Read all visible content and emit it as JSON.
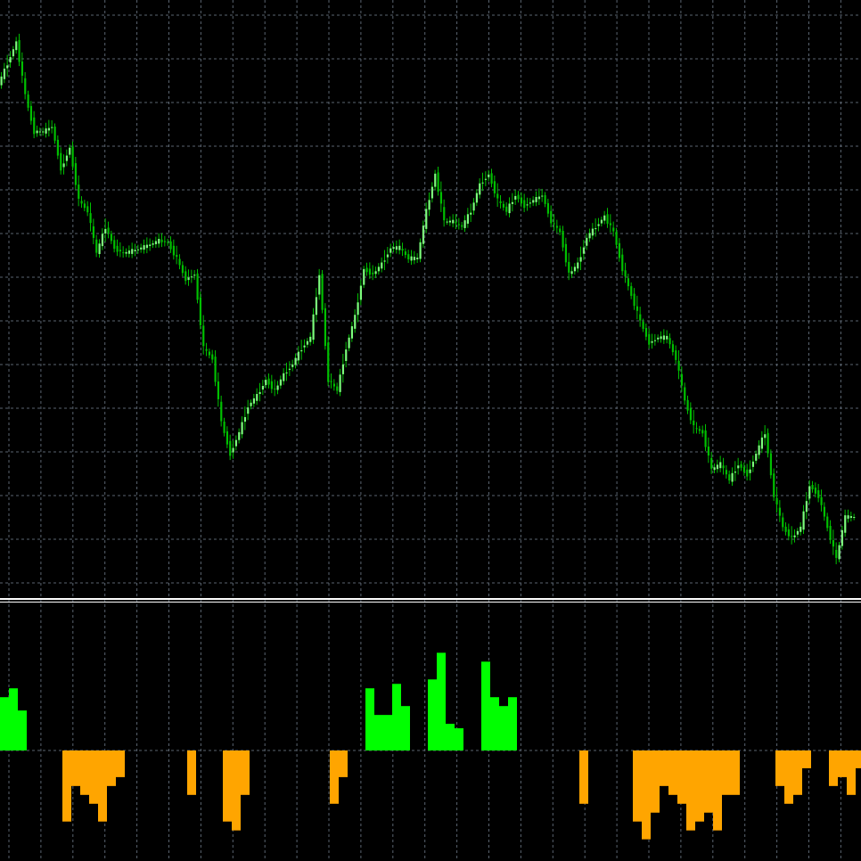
{
  "chart_data": [
    {
      "type": "candlestick",
      "pane": "price",
      "grid": true,
      "colors": {
        "background": "#000000",
        "grid": "#5a6470",
        "bull": "#7CFC7C",
        "bear": "#00C000"
      },
      "x_step_index": 1,
      "values": [
        886,
        906,
        926,
        876,
        841,
        841,
        846,
        806,
        826,
        776,
        766,
        726,
        751,
        731,
        726,
        728,
        731,
        734,
        738,
        736,
        721,
        701,
        706,
        636,
        626,
        566,
        536,
        556,
        581,
        591,
        606,
        596,
        611,
        621,
        636,
        646,
        706,
        606,
        596,
        636,
        666,
        711,
        706,
        716,
        731,
        731,
        721,
        721,
        766,
        801,
        756,
        756,
        751,
        766,
        791,
        801,
        776,
        766,
        781,
        771,
        776,
        781,
        756,
        746,
        706,
        716,
        741,
        751,
        761,
        746,
        711,
        686,
        661,
        641,
        646,
        646,
        626,
        586,
        561,
        556,
        521,
        526,
        511,
        526,
        516,
        536,
        556,
        496,
        466,
        456,
        466,
        506,
        496,
        466,
        436,
        476,
        476
      ],
      "ylim": [
        400,
        966
      ]
    },
    {
      "type": "bar",
      "pane": "indicator",
      "grid": true,
      "colors": {
        "positive": "#00FF00",
        "negative": "#FFA500"
      },
      "values": [
        60,
        70,
        45,
        0,
        0,
        0,
        0,
        -80,
        -40,
        -50,
        -60,
        -80,
        -40,
        -30,
        0,
        0,
        0,
        0,
        0,
        0,
        0,
        -50,
        0,
        0,
        0,
        -80,
        -90,
        -50,
        0,
        0,
        0,
        0,
        0,
        0,
        0,
        0,
        0,
        -60,
        -30,
        0,
        0,
        70,
        40,
        40,
        75,
        50,
        0,
        0,
        80,
        110,
        30,
        25,
        0,
        0,
        100,
        60,
        50,
        60,
        0,
        0,
        0,
        0,
        0,
        0,
        0,
        -60,
        0,
        0,
        0,
        0,
        0,
        -80,
        -100,
        -70,
        -40,
        -50,
        -60,
        -90,
        -80,
        -70,
        -90,
        -50,
        -50,
        0,
        0,
        0,
        0,
        -40,
        -60,
        -50,
        -20,
        0,
        0,
        -40,
        -30,
        -50,
        -20
      ],
      "ylim": [
        -125,
        166
      ]
    }
  ]
}
